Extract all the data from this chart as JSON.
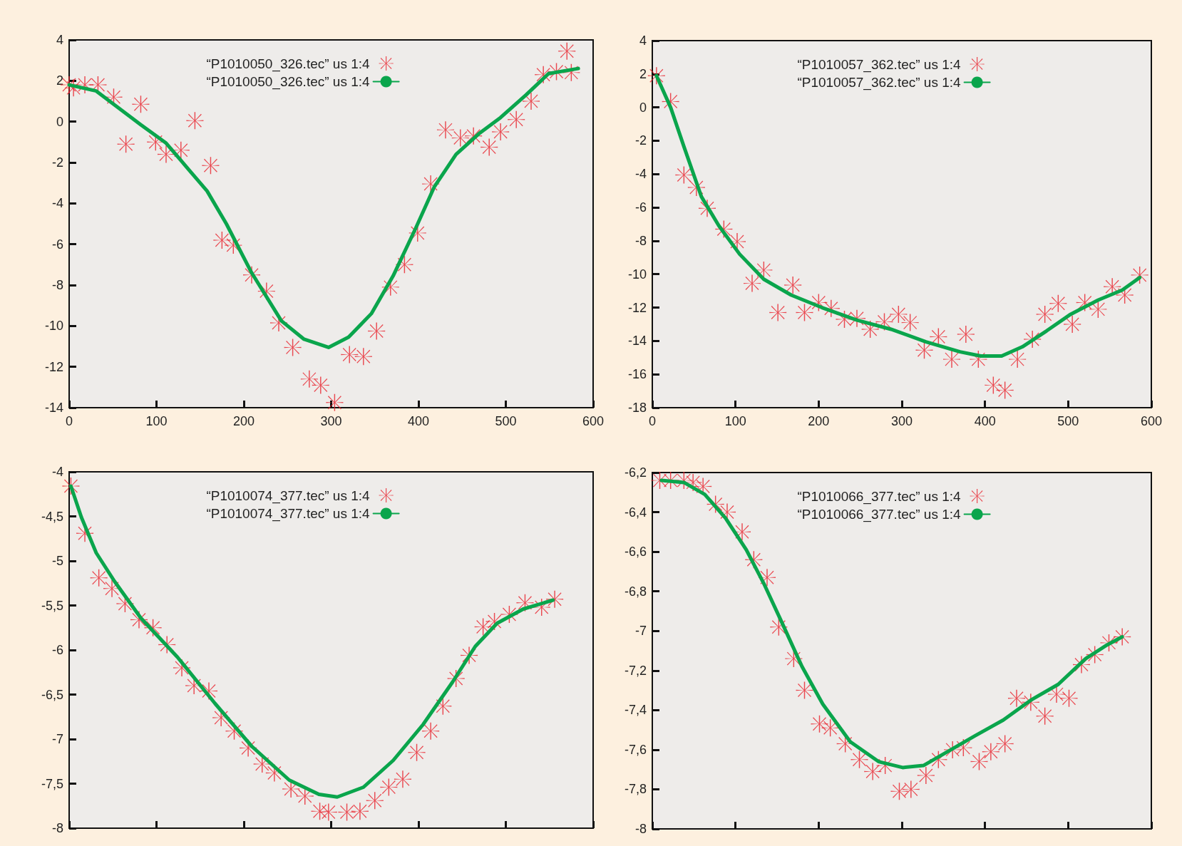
{
  "chart_data": [
    {
      "type": "scatter",
      "xlim": [
        0,
        600
      ],
      "xticks": [
        0,
        100,
        200,
        300,
        400,
        500,
        600
      ],
      "ylim": [
        -14,
        4
      ],
      "yticks": [
        -14,
        -12,
        -10,
        -8,
        -6,
        -4,
        -2,
        0,
        2,
        4
      ],
      "grid": false,
      "legend": "top",
      "series": [
        {
          "name": "“P1010050_326.tec” us 1:4",
          "type": "scatter",
          "marker": "cross",
          "color": "#e8212b",
          "x": [
            0,
            5,
            18,
            33,
            51,
            65,
            82,
            99,
            111,
            128,
            144,
            162,
            175,
            188,
            209,
            226,
            240,
            256,
            275,
            288,
            304,
            321,
            337,
            352,
            368,
            384,
            399,
            414,
            431,
            448,
            463,
            481,
            494,
            512,
            529,
            543,
            558,
            570,
            575
          ],
          "values": [
            1.8,
            1.65,
            1.8,
            1.8,
            1.2,
            -1.1,
            0.85,
            -1.0,
            -1.6,
            -1.4,
            0.05,
            -2.15,
            -5.8,
            -6.05,
            -7.5,
            -8.3,
            -9.85,
            -11.05,
            -12.6,
            -12.9,
            -13.75,
            -11.4,
            -11.5,
            -10.25,
            -8.1,
            -7.0,
            -5.45,
            -3.05,
            -0.4,
            -0.8,
            -0.7,
            -1.25,
            -0.5,
            0.1,
            1.0,
            2.3,
            2.45,
            3.45,
            2.4
          ]
        },
        {
          "name": "“P1010050_326.tec” us 1:4",
          "type": "line",
          "marker": "none",
          "line_style": "solid",
          "color": "#0aa54c",
          "x": [
            0,
            31,
            48,
            82,
            111,
            137,
            158,
            180,
            209,
            243,
            269,
            297,
            320,
            346,
            371,
            397,
            418,
            443,
            469,
            494,
            523,
            549,
            583
          ],
          "values": [
            1.8,
            1.5,
            0.95,
            -0.15,
            -1.05,
            -2.35,
            -3.4,
            -5.0,
            -7.4,
            -9.75,
            -10.65,
            -11.05,
            -10.55,
            -9.4,
            -7.55,
            -5.2,
            -3.2,
            -1.6,
            -0.6,
            0.2,
            1.3,
            2.35,
            2.6
          ]
        }
      ]
    },
    {
      "type": "scatter",
      "xlim": [
        0,
        600
      ],
      "xticks": [
        0,
        100,
        200,
        300,
        400,
        500,
        600
      ],
      "ylim": [
        -18,
        4
      ],
      "yticks": [
        -18,
        -16,
        -14,
        -12,
        -10,
        -8,
        -6,
        -4,
        -2,
        0,
        2,
        4
      ],
      "grid": false,
      "legend": "top",
      "series": [
        {
          "name": "“P1010057_362.tec” us 1:4",
          "type": "scatter",
          "marker": "cross",
          "color": "#e8212b",
          "x": [
            5,
            22,
            38,
            53,
            66,
            86,
            102,
            120,
            134,
            151,
            169,
            183,
            200,
            215,
            231,
            246,
            262,
            279,
            296,
            310,
            327,
            344,
            360,
            377,
            392,
            410,
            424,
            439,
            457,
            472,
            488,
            505,
            520,
            536,
            553,
            568,
            586
          ],
          "values": [
            1.9,
            0.35,
            -4.05,
            -4.8,
            -6.05,
            -7.3,
            -8.05,
            -10.55,
            -9.75,
            -12.3,
            -10.65,
            -12.3,
            -11.7,
            -12.05,
            -12.7,
            -12.65,
            -13.3,
            -12.85,
            -12.4,
            -12.9,
            -14.55,
            -13.75,
            -15.1,
            -13.6,
            -15.1,
            -16.65,
            -16.95,
            -15.1,
            -13.9,
            -12.4,
            -11.75,
            -13.0,
            -11.7,
            -12.1,
            -10.75,
            -11.25,
            -10.05
          ]
        },
        {
          "name": "“P1010057_362.tec” us 1:4",
          "type": "line",
          "marker": "none",
          "line_style": "solid",
          "color": "#0aa54c",
          "x": [
            5,
            22,
            38,
            59,
            80,
            105,
            134,
            167,
            204,
            246,
            287,
            329,
            370,
            395,
            420,
            445,
            474,
            503,
            536,
            565,
            586
          ],
          "values": [
            1.9,
            0,
            -2.35,
            -5.35,
            -7.1,
            -8.8,
            -10.3,
            -11.25,
            -12.0,
            -12.75,
            -13.3,
            -14.05,
            -14.65,
            -14.9,
            -14.9,
            -14.35,
            -13.4,
            -12.4,
            -11.55,
            -10.95,
            -10.2
          ]
        }
      ]
    },
    {
      "type": "scatter",
      "xlim": [
        0,
        600
      ],
      "xticks": [
        {
          "value": 0,
          "label": null
        },
        {
          "value": 100,
          "label": null
        },
        {
          "value": 200,
          "label": null
        },
        {
          "value": 300,
          "label": null
        },
        {
          "value": 400,
          "label": null
        },
        {
          "value": 500,
          "label": null
        },
        {
          "value": 600,
          "label": null
        }
      ],
      "tick_labels": "y",
      "ylim": [
        -8,
        -4
      ],
      "yticks": [
        {
          "value": -8,
          "label": "-8"
        },
        {
          "value": -7.5,
          "label": "-7,5"
        },
        {
          "value": -7,
          "label": "-7"
        },
        {
          "value": -6.5,
          "label": "-6,5"
        },
        {
          "value": -6,
          "label": "-6"
        },
        {
          "value": -5.5,
          "label": "-5,5"
        },
        {
          "value": -5,
          "label": "-5"
        },
        {
          "value": -4.5,
          "label": "-4,5"
        },
        {
          "value": -4,
          "label": "-4"
        }
      ],
      "grid": false,
      "legend": "top",
      "series": [
        {
          "name": "“P1010074_377.tec” us 1:4",
          "type": "scatter",
          "marker": "cross",
          "color": "#e8212b",
          "x": [
            2,
            18,
            34,
            49,
            64,
            80,
            96,
            112,
            129,
            143,
            160,
            174,
            189,
            205,
            221,
            235,
            254,
            270,
            287,
            297,
            318,
            333,
            350,
            366,
            382,
            398,
            414,
            428,
            443,
            458,
            474,
            487,
            504,
            522,
            541,
            556
          ],
          "values": [
            -4.16,
            -4.69,
            -5.19,
            -5.31,
            -5.48,
            -5.66,
            -5.75,
            -5.94,
            -6.2,
            -6.4,
            -6.46,
            -6.76,
            -6.91,
            -7.1,
            -7.28,
            -7.38,
            -7.56,
            -7.64,
            -7.81,
            -7.82,
            -7.82,
            -7.81,
            -7.69,
            -7.54,
            -7.45,
            -7.15,
            -6.91,
            -6.63,
            -6.32,
            -6.06,
            -5.74,
            -5.68,
            -5.6,
            -5.47,
            -5.52,
            -5.43
          ]
        },
        {
          "name": "“P1010074_377.tec” us 1:4",
          "type": "line",
          "marker": "none",
          "line_style": "solid",
          "color": "#0aa54c",
          "x": [
            2,
            14,
            31,
            52,
            82,
            124,
            167,
            209,
            252,
            286,
            307,
            337,
            371,
            405,
            439,
            465,
            490,
            520,
            554
          ],
          "values": [
            -4.16,
            -4.51,
            -4.91,
            -5.23,
            -5.64,
            -6.08,
            -6.6,
            -7.08,
            -7.46,
            -7.62,
            -7.65,
            -7.54,
            -7.24,
            -6.84,
            -6.36,
            -5.96,
            -5.7,
            -5.54,
            -5.44
          ]
        }
      ]
    },
    {
      "type": "scatter",
      "xlim": [
        0,
        600
      ],
      "xticks": [
        {
          "value": 0,
          "label": null
        },
        {
          "value": 100,
          "label": null
        },
        {
          "value": 200,
          "label": null
        },
        {
          "value": 300,
          "label": null
        },
        {
          "value": 400,
          "label": null
        },
        {
          "value": 500,
          "label": null
        },
        {
          "value": 600,
          "label": null
        }
      ],
      "tick_labels": "y",
      "ylim": [
        -8,
        -6.2
      ],
      "yticks": [
        {
          "value": -8,
          "label": "-8"
        },
        {
          "value": -7.8,
          "label": "-7,8"
        },
        {
          "value": -7.6,
          "label": "-7,6"
        },
        {
          "value": -7.4,
          "label": "-7,4"
        },
        {
          "value": -7.2,
          "label": "-7,2"
        },
        {
          "value": -7,
          "label": "-7"
        },
        {
          "value": -6.8,
          "label": "-6,8"
        },
        {
          "value": -6.6,
          "label": "-6,6"
        },
        {
          "value": -6.4,
          "label": "-6,4"
        },
        {
          "value": -6.2,
          "label": "-6,2"
        }
      ],
      "grid": false,
      "legend": "top",
      "series": [
        {
          "name": "“P1010066_377.tec” us 1:4",
          "type": "scatter",
          "marker": "cross",
          "color": "#e8212b",
          "x": [
            9,
            22,
            38,
            49,
            61,
            76,
            90,
            108,
            122,
            138,
            152,
            170,
            183,
            201,
            214,
            232,
            249,
            265,
            280,
            297,
            311,
            329,
            344,
            361,
            374,
            393,
            407,
            424,
            438,
            455,
            472,
            486,
            501,
            516,
            532,
            549,
            565
          ],
          "values": [
            -6.24,
            -6.24,
            -6.24,
            -6.25,
            -6.27,
            -6.36,
            -6.4,
            -6.5,
            -6.64,
            -6.73,
            -6.98,
            -7.14,
            -7.3,
            -7.47,
            -7.49,
            -7.57,
            -7.65,
            -7.71,
            -7.68,
            -7.81,
            -7.8,
            -7.73,
            -7.65,
            -7.6,
            -7.59,
            -7.66,
            -7.61,
            -7.57,
            -7.34,
            -7.36,
            -7.43,
            -7.32,
            -7.34,
            -7.17,
            -7.12,
            -7.06,
            -7.03
          ]
        },
        {
          "name": "“P1010066_377.tec” us 1:4",
          "type": "line",
          "marker": "none",
          "line_style": "solid",
          "color": "#0aa54c",
          "x": [
            11,
            38,
            63,
            88,
            113,
            134,
            155,
            180,
            205,
            238,
            272,
            301,
            326,
            355,
            388,
            422,
            455,
            488,
            521,
            547,
            565
          ],
          "values": [
            -6.24,
            -6.25,
            -6.31,
            -6.43,
            -6.59,
            -6.76,
            -6.95,
            -7.18,
            -7.37,
            -7.56,
            -7.66,
            -7.69,
            -7.68,
            -7.61,
            -7.53,
            -7.45,
            -7.35,
            -7.27,
            -7.14,
            -7.07,
            -7.03
          ]
        }
      ]
    }
  ]
}
